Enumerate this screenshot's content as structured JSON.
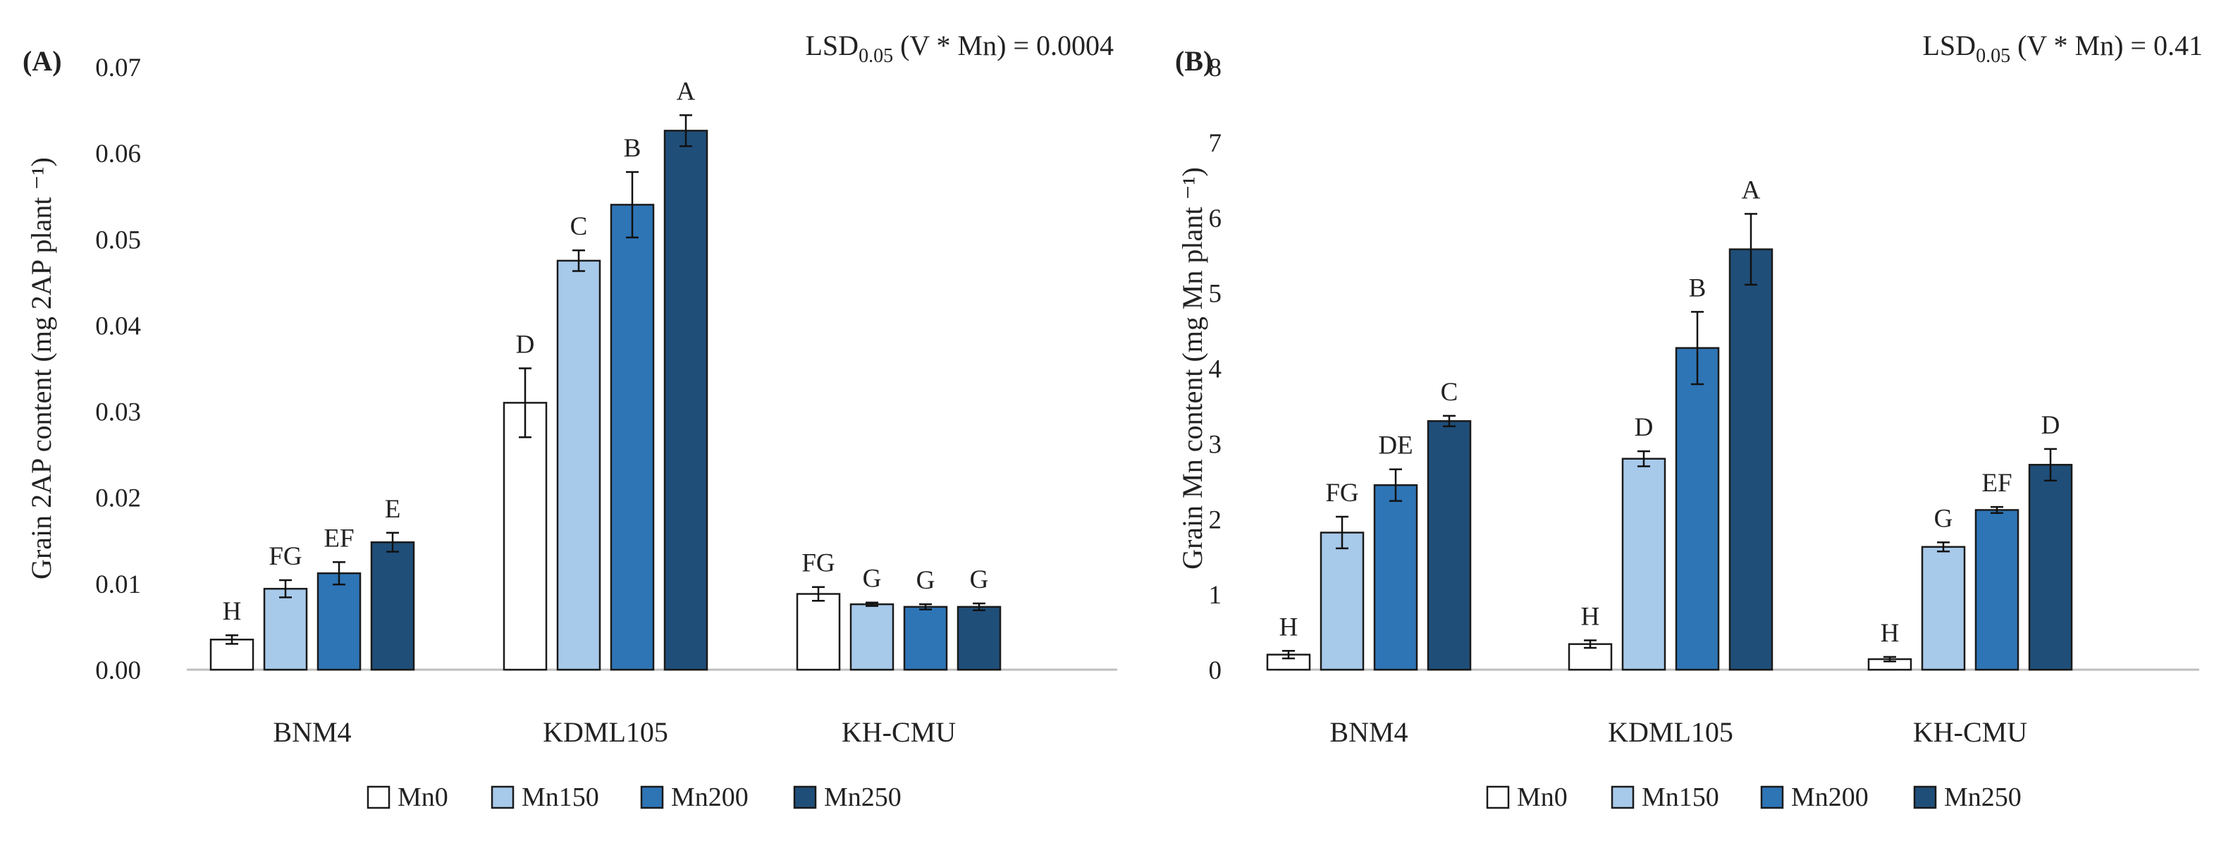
{
  "colors": {
    "Mn0": "#ffffff",
    "Mn150": "#a7c9ea",
    "Mn200": "#2e75b6",
    "Mn250": "#1f4e79",
    "outline": "#1a1a1a",
    "axis": "#bfbfbf",
    "text": "#222222"
  },
  "chart_data": [
    {
      "type": "bar",
      "panel_label": "(A)",
      "lsd": {
        "prefix": "LSD",
        "subscript": "0.05",
        "suffix": " (V * Mn) = 0.0004"
      },
      "ylabel": "Grain 2AP content (mg 2AP plant ⁻¹)",
      "xlabel": "",
      "ylim": [
        0,
        0.07
      ],
      "yticks": [
        "0.00",
        "0.01",
        "0.02",
        "0.03",
        "0.04",
        "0.05",
        "0.06",
        "0.07"
      ],
      "categories": [
        "BNM4",
        "KDML105",
        "KH-CMU"
      ],
      "series": [
        {
          "name": "Mn0",
          "values": [
            0.0035,
            0.031,
            0.0088
          ],
          "errors": [
            0.0005,
            0.004,
            0.0008
          ],
          "letters": [
            "H",
            "D",
            "FG"
          ]
        },
        {
          "name": "Mn150",
          "values": [
            0.0094,
            0.0475,
            0.0076
          ],
          "errors": [
            0.001,
            0.0012,
            0.0002
          ],
          "letters": [
            "FG",
            "C",
            "G"
          ]
        },
        {
          "name": "Mn200",
          "values": [
            0.0112,
            0.054,
            0.0073
          ],
          "errors": [
            0.0013,
            0.0038,
            0.0003
          ],
          "letters": [
            "EF",
            "B",
            "G"
          ]
        },
        {
          "name": "Mn250",
          "values": [
            0.0148,
            0.0626,
            0.0073
          ],
          "errors": [
            0.0011,
            0.0018,
            0.0004
          ],
          "letters": [
            "E",
            "A",
            "G"
          ]
        }
      ],
      "legend": [
        "Mn0",
        "Mn150",
        "Mn200",
        "Mn250"
      ],
      "legend_position": "bottom"
    },
    {
      "type": "bar",
      "panel_label": "(B)",
      "lsd": {
        "prefix": "LSD",
        "subscript": "0.05",
        "suffix": " (V * Mn) = 0.41"
      },
      "ylabel": "Grain Mn content (mg Mn plant ⁻¹)",
      "xlabel": "",
      "ylim": [
        0,
        8
      ],
      "yticks": [
        "0",
        "1",
        "2",
        "3",
        "4",
        "5",
        "6",
        "7",
        "8"
      ],
      "categories": [
        "BNM4",
        "KDML105",
        "KH-CMU"
      ],
      "series": [
        {
          "name": "Mn0",
          "values": [
            0.2,
            0.34,
            0.14
          ],
          "errors": [
            0.05,
            0.05,
            0.03
          ],
          "letters": [
            "H",
            "H",
            "H"
          ]
        },
        {
          "name": "Mn150",
          "values": [
            1.82,
            2.8,
            1.63
          ],
          "errors": [
            0.21,
            0.1,
            0.06
          ],
          "letters": [
            "FG",
            "D",
            "G"
          ]
        },
        {
          "name": "Mn200",
          "values": [
            2.45,
            4.27,
            2.12
          ],
          "errors": [
            0.21,
            0.48,
            0.04
          ],
          "letters": [
            "DE",
            "B",
            "EF"
          ]
        },
        {
          "name": "Mn250",
          "values": [
            3.3,
            5.58,
            2.72
          ],
          "errors": [
            0.07,
            0.47,
            0.21
          ],
          "letters": [
            "C",
            "A",
            "D"
          ]
        }
      ],
      "legend": [
        "Mn0",
        "Mn150",
        "Mn200",
        "Mn250"
      ],
      "legend_position": "bottom"
    }
  ]
}
